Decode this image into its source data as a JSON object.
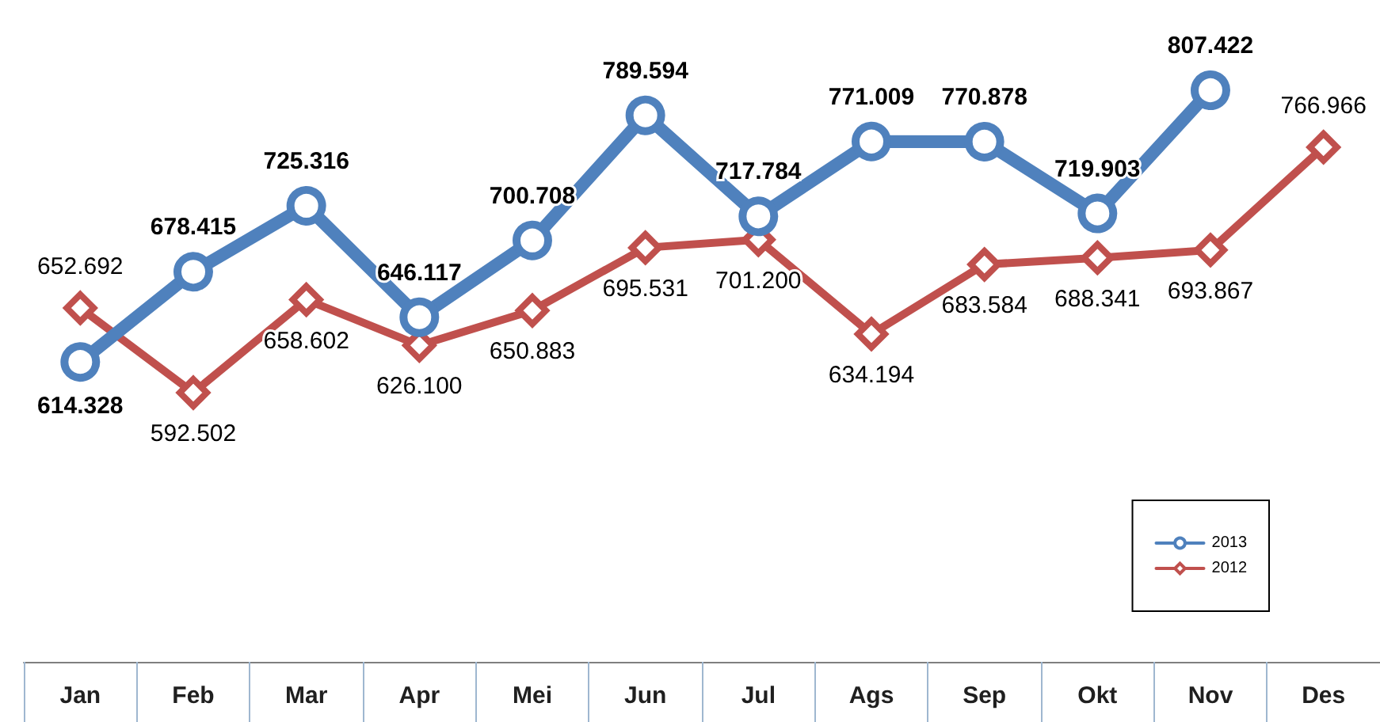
{
  "chart_data": {
    "type": "line",
    "categories": [
      "Jan",
      "Feb",
      "Mar",
      "Apr",
      "Mei",
      "Jun",
      "Jul",
      "Ags",
      "Sep",
      "Okt",
      "Nov",
      "Des"
    ],
    "series": [
      {
        "name": "2013",
        "color": "#4f81bd",
        "marker": "circle",
        "values": [
          614.328,
          678.415,
          725.316,
          646.117,
          700.708,
          789.594,
          717.784,
          771.009,
          770.878,
          719.903,
          807.422,
          null
        ],
        "value_labels": [
          "614.328",
          "678.415",
          "725.316",
          "646.117",
          "700.708",
          "789.594",
          "717.784",
          "771.009",
          "770.878",
          "719.903",
          "807.422",
          null
        ]
      },
      {
        "name": "2012",
        "color": "#c0504d",
        "marker": "diamond",
        "values": [
          652.692,
          592.502,
          658.602,
          626.1,
          650.883,
          695.531,
          701.2,
          634.194,
          683.584,
          688.341,
          693.867,
          766.966
        ],
        "value_labels": [
          "652.692",
          "592.502",
          "658.602",
          "626.100",
          "650.883",
          "695.531",
          "701.200",
          "634.194",
          "683.584",
          "688.341",
          "693.867",
          "766.966"
        ]
      }
    ],
    "tick_labels": "x",
    "grid": false,
    "legend": "bottom right",
    "line_style": "solid"
  }
}
